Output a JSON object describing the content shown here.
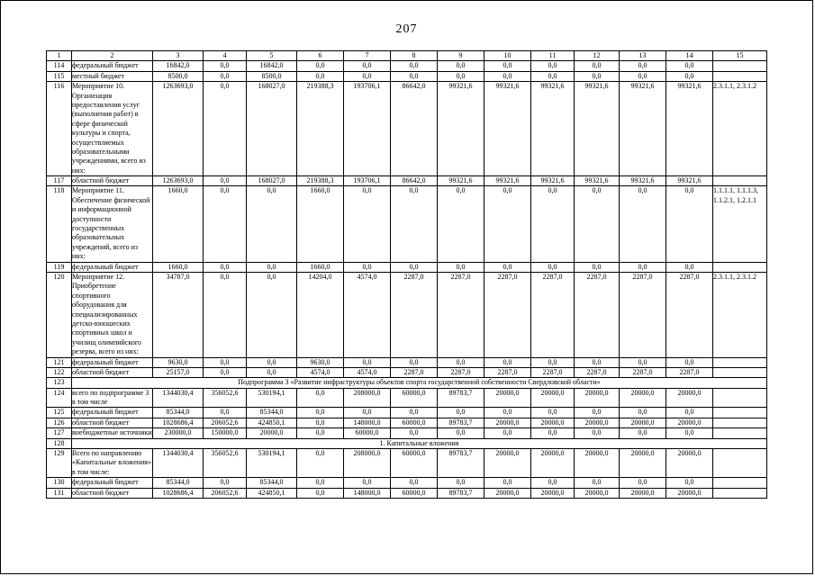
{
  "page_number": "207",
  "table": {
    "columns": [
      "1",
      "2",
      "3",
      "4",
      "5",
      "6",
      "7",
      "8",
      "9",
      "10",
      "11",
      "12",
      "13",
      "14",
      "15"
    ],
    "rows": [
      {
        "type": "data",
        "num": "114",
        "name": "федеральный бюджет",
        "values": [
          "16842,0",
          "0,0",
          "16842,0",
          "0,0",
          "0,0",
          "0,0",
          "0,0",
          "0,0",
          "0,0",
          "0,0",
          "0,0",
          "0,0"
        ],
        "code": ""
      },
      {
        "type": "data",
        "num": "115",
        "name": "местный бюджет",
        "values": [
          "8500,0",
          "0,0",
          "8500,0",
          "0,0",
          "0,0",
          "0,0",
          "0,0",
          "0,0",
          "0,0",
          "0,0",
          "0,0",
          "0,0"
        ],
        "code": ""
      },
      {
        "type": "data",
        "num": "116",
        "name": "Мероприятие 10. Организация предоставления услуг (выполнения работ) в сфере физической культуры и спорта, осуществляемых образовательными учреждениями, всего из них:",
        "values": [
          "1263693,0",
          "0,0",
          "168027,0",
          "219388,3",
          "193706,1",
          "86642,0",
          "99321,6",
          "99321,6",
          "99321,6",
          "99321,6",
          "99321,6",
          "99321,6"
        ],
        "code": "2.3.1.1, 2.3.1.2"
      },
      {
        "type": "data",
        "num": "117",
        "name": "областной бюджет",
        "values": [
          "1263693,0",
          "0,0",
          "168027,0",
          "219388,3",
          "193706,1",
          "86642,0",
          "99321,6",
          "99321,6",
          "99321,6",
          "99321,6",
          "99321,6",
          "99321,6"
        ],
        "code": ""
      },
      {
        "type": "data",
        "num": "118",
        "name": "Мероприятие 11. Обеспечение физической и информационной доступности государственных образовательных учреждений, всего из них:",
        "values": [
          "1660,0",
          "0,0",
          "0,0",
          "1660,0",
          "0,0",
          "0,0",
          "0,0",
          "0,0",
          "0,0",
          "0,0",
          "0,0",
          "0,0"
        ],
        "code": "1.1.1.1, 1.1.1.3, 1.1.2.1, 1.2.1.1"
      },
      {
        "type": "data",
        "num": "119",
        "name": "федеральный бюджет",
        "values": [
          "1660,0",
          "0,0",
          "0,0",
          "1660,0",
          "0,0",
          "0,0",
          "0,0",
          "0,0",
          "0,0",
          "0,0",
          "0,0",
          "0,0"
        ],
        "code": ""
      },
      {
        "type": "data",
        "num": "120",
        "name": "Мероприятие 12. Приобретение спортивного оборудования для специализированных детско-юношеских спортивных школ и училищ олимпийского резерва, всего из них:",
        "values": [
          "34787,0",
          "0,0",
          "0,0",
          "14204,0",
          "4574,0",
          "2287,0",
          "2287,0",
          "2287,0",
          "2287,0",
          "2287,0",
          "2287,0",
          "2287,0"
        ],
        "code": "2.3.1.1, 2.3.1.2"
      },
      {
        "type": "data",
        "num": "121",
        "name": "федеральный бюджет",
        "values": [
          "9630,0",
          "0,0",
          "0,0",
          "9630,0",
          "0,0",
          "0,0",
          "0,0",
          "0,0",
          "0,0",
          "0,0",
          "0,0",
          "0,0"
        ],
        "code": ""
      },
      {
        "type": "data",
        "num": "122",
        "name": "областной бюджет",
        "values": [
          "25157,0",
          "0,0",
          "0,0",
          "4574,0",
          "4574,0",
          "2287,0",
          "2287,0",
          "2287,0",
          "2287,0",
          "2287,0",
          "2287,0",
          "2287,0"
        ],
        "code": ""
      },
      {
        "type": "span",
        "num": "123",
        "text": "Подпрограмма 3 «Развитие инфраструктуры объектов спорта государственной собственности Свердловской области»"
      },
      {
        "type": "data",
        "num": "124",
        "name": "всего по подпрограмме 3 в том числе",
        "values": [
          "1344030,4",
          "356052,6",
          "530194,1",
          "0,0",
          "208000,0",
          "60000,0",
          "89783,7",
          "20000,0",
          "20000,0",
          "20000,0",
          "20000,0",
          "20000,0"
        ],
        "code": ""
      },
      {
        "type": "data",
        "num": "125",
        "name": "федеральный бюджет",
        "values": [
          "85344,0",
          "0,0",
          "85344,0",
          "0,0",
          "0,0",
          "0,0",
          "0,0",
          "0,0",
          "0,0",
          "0,0",
          "0,0",
          "0,0"
        ],
        "code": ""
      },
      {
        "type": "data",
        "num": "126",
        "name": "областной бюджет",
        "values": [
          "1028686,4",
          "206052,6",
          "424850,1",
          "0,0",
          "148000,0",
          "60000,0",
          "89783,7",
          "20000,0",
          "20000,0",
          "20000,0",
          "20000,0",
          "20000,0"
        ],
        "code": ""
      },
      {
        "type": "data",
        "num": "127",
        "name": "внебюджетные источники",
        "values": [
          "230000,0",
          "150000,0",
          "20000,0",
          "0,0",
          "60000,0",
          "0,0",
          "0,0",
          "0,0",
          "0,0",
          "0,0",
          "0,0",
          "0,0"
        ],
        "code": ""
      },
      {
        "type": "span",
        "num": "128",
        "text": "1. Капитальные вложения"
      },
      {
        "type": "data",
        "num": "129",
        "name": "Всего по направлению «Капитальные вложения» в том числе:",
        "values": [
          "1344030,4",
          "356052,6",
          "530194,1",
          "0,0",
          "208000,0",
          "60000,0",
          "89783,7",
          "20000,0",
          "20000,0",
          "20000,0",
          "20000,0",
          "20000,0"
        ],
        "code": ""
      },
      {
        "type": "data",
        "num": "130",
        "name": "федеральный бюджет",
        "values": [
          "85344,0",
          "0,0",
          "85344,0",
          "0,0",
          "0,0",
          "0,0",
          "0,0",
          "0,0",
          "0,0",
          "0,0",
          "0,0",
          "0,0"
        ],
        "code": ""
      },
      {
        "type": "data",
        "num": "131",
        "name": "областной бюджет",
        "values": [
          "1028686,4",
          "206052,6",
          "424850,1",
          "0,0",
          "148000,0",
          "60000,0",
          "89783,7",
          "20000,0",
          "20000,0",
          "20000,0",
          "20000,0",
          "20000,0"
        ],
        "code": ""
      }
    ]
  }
}
